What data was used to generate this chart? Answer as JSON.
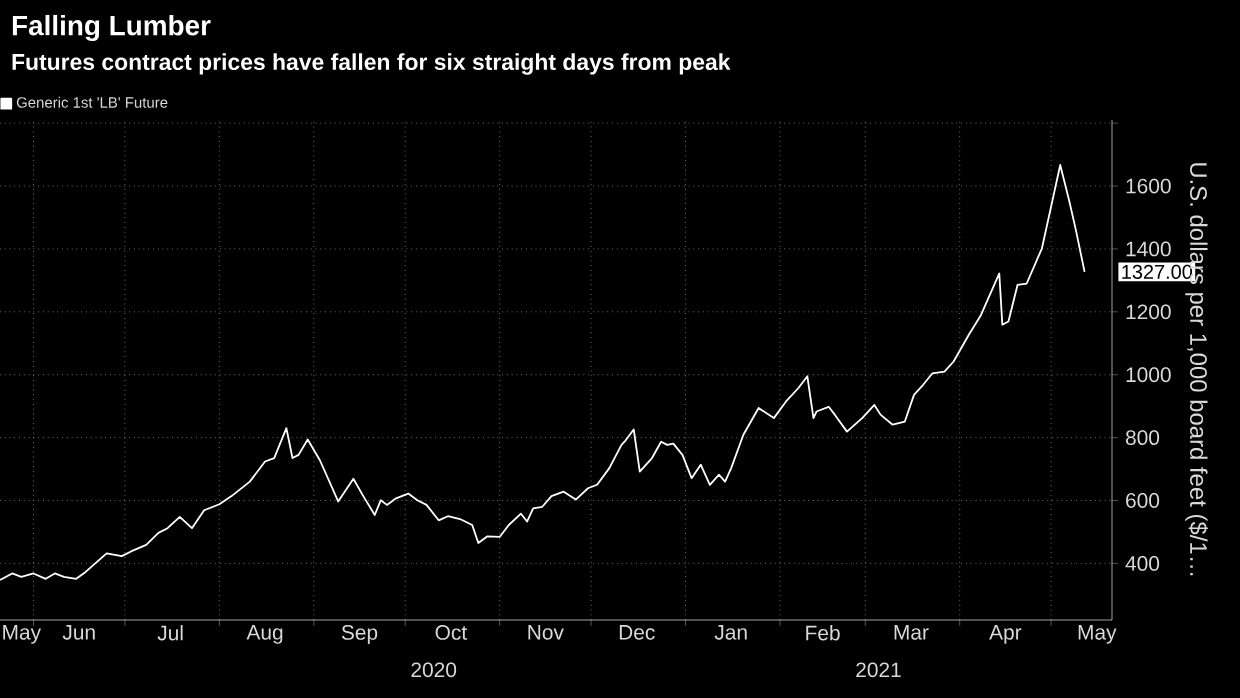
{
  "chart_data": {
    "type": "line",
    "title": "Falling Lumber",
    "subtitle": "Futures contract prices have fallen for six straight days from peak",
    "ylabel": "U.S. dollars per 1,000 board feet ($/1…",
    "legend": "top left",
    "grid": true,
    "line_style": "solid",
    "marker": "none",
    "xlim": [
      "2020-05-21",
      "2021-05-21"
    ],
    "ylim": [
      220,
      1810
    ],
    "yticks": [
      400,
      600,
      800,
      1000,
      1200,
      1400,
      1600,
      {
        "value": 1800,
        "label": null
      }
    ],
    "xticks": [
      {
        "value": "2020-05-28",
        "label": "May"
      },
      {
        "value": "2020-06-01",
        "label": null
      },
      {
        "value": "2020-06-16",
        "label": "Jun"
      },
      {
        "value": "2020-07-01",
        "label": null
      },
      {
        "value": "2020-07-16",
        "label": "Jul"
      },
      {
        "value": "2020-08-01",
        "label": null
      },
      {
        "value": "2020-08-16",
        "label": "Aug"
      },
      {
        "value": "2020-09-01",
        "label": null
      },
      {
        "value": "2020-09-16",
        "label": "Sep"
      },
      {
        "value": "2020-10-01",
        "label": null
      },
      {
        "value": "2020-10-16",
        "label": "Oct"
      },
      {
        "value": "2020-11-01",
        "label": null
      },
      {
        "value": "2020-11-16",
        "label": "Nov"
      },
      {
        "value": "2020-12-01",
        "label": null
      },
      {
        "value": "2020-12-16",
        "label": "Dec"
      },
      {
        "value": "2021-01-01",
        "label": null
      },
      {
        "value": "2021-01-16",
        "label": "Jan"
      },
      {
        "value": "2021-02-01",
        "label": null
      },
      {
        "value": "2021-02-15",
        "label": "Feb"
      },
      {
        "value": "2021-03-01",
        "label": null
      },
      {
        "value": "2021-03-16",
        "label": "Mar"
      },
      {
        "value": "2021-04-01",
        "label": null
      },
      {
        "value": "2021-04-16",
        "label": "Apr"
      },
      {
        "value": "2021-05-01",
        "label": null
      },
      {
        "value": "2021-05-16",
        "label": "May"
      }
    ],
    "annotations": [
      "2020",
      "2021",
      {
        "text": "1327.00",
        "x": "2021-05-12",
        "y": 1327
      }
    ],
    "series": [
      {
        "name": "Generic 1st 'LB' Future",
        "color": "#ffffff",
        "x": [
          "2020-05-21",
          "2020-05-25",
          "2020-05-28",
          "2020-06-01",
          "2020-06-05",
          "2020-06-08",
          "2020-06-11",
          "2020-06-15",
          "2020-06-18",
          "2020-06-25",
          "2020-06-30",
          "2020-07-03",
          "2020-07-08",
          "2020-07-12",
          "2020-07-15",
          "2020-07-19",
          "2020-07-23",
          "2020-07-27",
          "2020-08-01",
          "2020-08-05",
          "2020-08-11",
          "2020-08-16",
          "2020-08-19",
          "2020-08-23",
          "2020-08-25",
          "2020-08-27",
          "2020-08-30",
          "2020-09-03",
          "2020-09-09",
          "2020-09-14",
          "2020-09-17",
          "2020-09-21",
          "2020-09-23",
          "2020-09-25",
          "2020-09-28",
          "2020-10-02",
          "2020-10-05",
          "2020-10-08",
          "2020-10-12",
          "2020-10-15",
          "2020-10-19",
          "2020-10-23",
          "2020-10-25",
          "2020-10-28",
          "2020-11-01",
          "2020-11-04",
          "2020-11-08",
          "2020-11-10",
          "2020-11-12",
          "2020-11-15",
          "2020-11-18",
          "2020-11-22",
          "2020-11-26",
          "2020-11-30",
          "2020-12-03",
          "2020-12-07",
          "2020-12-11",
          "2020-12-12",
          "2020-12-15",
          "2020-12-17",
          "2020-12-21",
          "2020-12-24",
          "2020-12-26",
          "2020-12-28",
          "2020-12-31",
          "2021-01-03",
          "2021-01-06",
          "2021-01-09",
          "2021-01-12",
          "2021-01-14",
          "2021-01-16",
          "2021-01-20",
          "2021-01-25",
          "2021-01-30",
          "2021-02-03",
          "2021-02-07",
          "2021-02-10",
          "2021-02-12",
          "2021-02-13",
          "2021-02-17",
          "2021-02-19",
          "2021-02-23",
          "2021-02-28",
          "2021-03-04",
          "2021-03-06",
          "2021-03-10",
          "2021-03-14",
          "2021-03-17",
          "2021-03-20",
          "2021-03-23",
          "2021-03-27",
          "2021-03-30",
          "2021-04-04",
          "2021-04-08",
          "2021-04-14",
          "2021-04-15",
          "2021-04-17",
          "2021-04-20",
          "2021-04-23",
          "2021-04-28",
          "2021-05-04",
          "2021-05-07",
          "2021-05-09",
          "2021-05-12"
        ],
        "values": [
          347,
          368,
          357,
          368,
          351,
          368,
          357,
          351,
          372,
          432,
          423,
          438,
          459,
          497,
          512,
          548,
          512,
          569,
          588,
          614,
          660,
          724,
          735,
          830,
          735,
          745,
          794,
          728,
          597,
          669,
          618,
          554,
          601,
          586,
          607,
          622,
          601,
          586,
          537,
          550,
          541,
          522,
          465,
          486,
          484,
          522,
          558,
          533,
          575,
          580,
          614,
          628,
          603,
          639,
          650,
          703,
          777,
          787,
          826,
          692,
          735,
          787,
          777,
          781,
          745,
          671,
          714,
          650,
          682,
          660,
          703,
          809,
          894,
          862,
          915,
          957,
          995,
          862,
          883,
          898,
          873,
          819,
          862,
          904,
          873,
          841,
          851,
          936,
          968,
          1004,
          1010,
          1042,
          1127,
          1190,
          1322,
          1159,
          1169,
          1286,
          1290,
          1402,
          1667,
          1551,
          1466,
          1327
        ]
      }
    ]
  }
}
